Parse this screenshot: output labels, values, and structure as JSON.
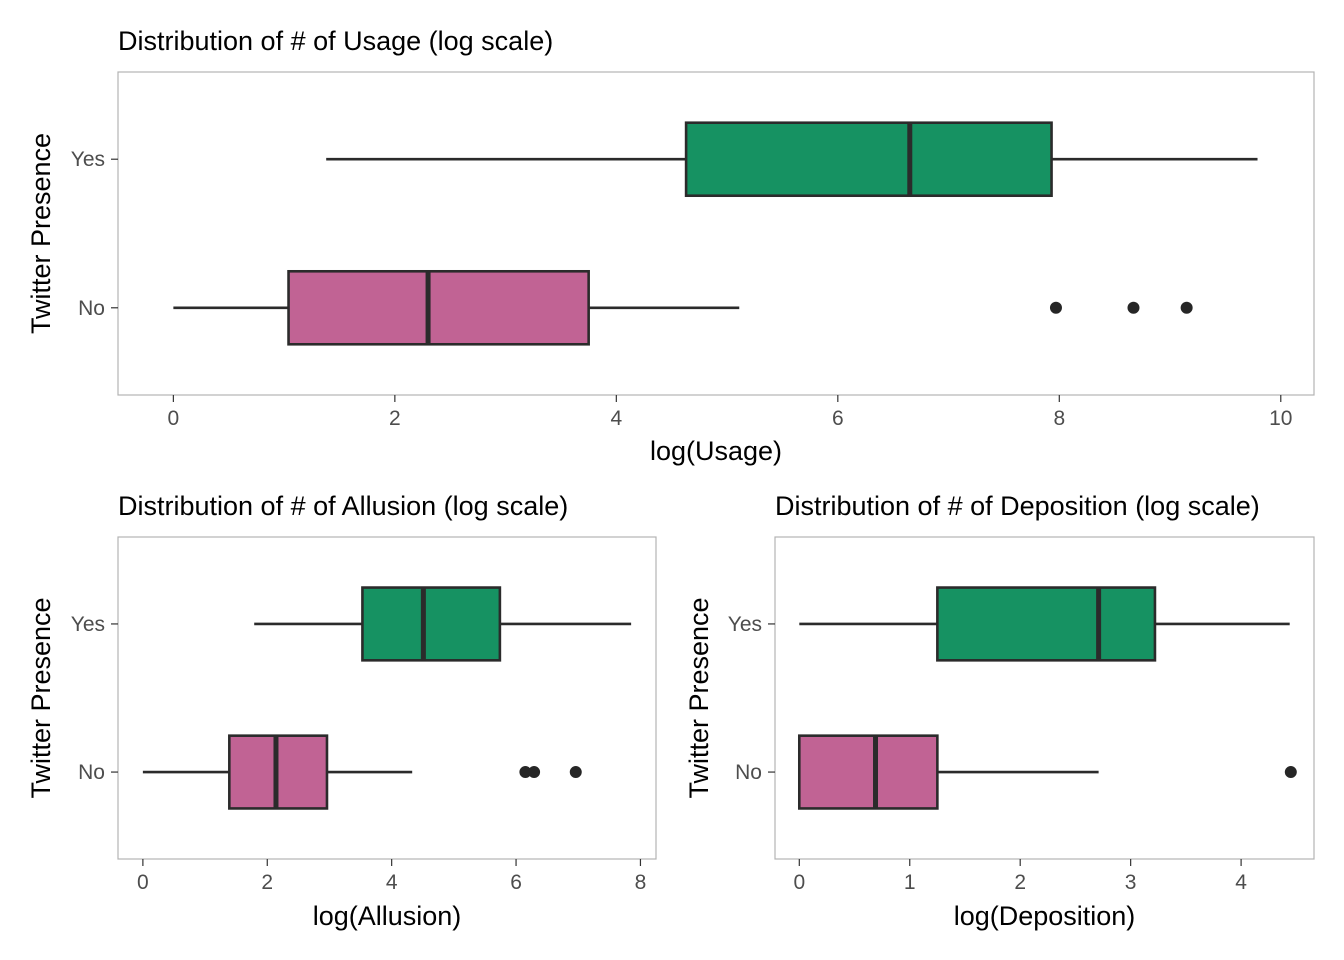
{
  "chart_data": [
    {
      "type": "boxplot",
      "title": "Distribution of # of Usage (log scale)",
      "xlabel": "log(Usage)",
      "ylabel": "Twitter Presence",
      "xlim": [
        -0.5,
        10.3
      ],
      "xticks": [
        0,
        2,
        4,
        6,
        8,
        10
      ],
      "xtick_labels": [
        "0",
        "2",
        "4",
        "6",
        "8",
        "10"
      ],
      "categories": [
        "Yes",
        "No"
      ],
      "series": [
        {
          "name": "Yes",
          "color": "#169262",
          "whisker_low": 1.38,
          "q1": 4.63,
          "median": 6.65,
          "q3": 7.93,
          "whisker_high": 9.79,
          "outliers": []
        },
        {
          "name": "No",
          "color": "#C16394",
          "whisker_low": 0.0,
          "q1": 1.04,
          "median": 2.3,
          "q3": 3.75,
          "whisker_high": 5.11,
          "outliers": [
            7.97,
            8.67,
            9.15
          ]
        }
      ],
      "grid": false,
      "legend": "none"
    },
    {
      "type": "boxplot",
      "title": "Distribution of # of Allusion (log scale)",
      "xlabel": "log(Allusion)",
      "ylabel": "Twitter Presence",
      "xlim": [
        -0.4,
        8.25
      ],
      "xticks": [
        0,
        2,
        4,
        6,
        8
      ],
      "xtick_labels": [
        "0",
        "2",
        "4",
        "6",
        "8"
      ],
      "categories": [
        "Yes",
        "No"
      ],
      "series": [
        {
          "name": "Yes",
          "color": "#169262",
          "whisker_low": 1.79,
          "q1": 3.53,
          "median": 4.51,
          "q3": 5.74,
          "whisker_high": 7.85,
          "outliers": []
        },
        {
          "name": "No",
          "color": "#C16394",
          "whisker_low": 0.0,
          "q1": 1.39,
          "median": 2.14,
          "q3": 2.96,
          "whisker_high": 4.33,
          "outliers": [
            6.15,
            6.29,
            6.96
          ]
        }
      ],
      "grid": false,
      "legend": "none"
    },
    {
      "type": "boxplot",
      "title": "Distribution of # of Deposition (log scale)",
      "xlabel": "log(Deposition)",
      "ylabel": "Twitter Presence",
      "xlim": [
        -0.22,
        4.66
      ],
      "xticks": [
        0,
        1,
        2,
        3,
        4
      ],
      "xtick_labels": [
        "0",
        "1",
        "2",
        "3",
        "4"
      ],
      "categories": [
        "Yes",
        "No"
      ],
      "series": [
        {
          "name": "Yes",
          "color": "#169262",
          "whisker_low": 0.0,
          "q1": 1.25,
          "median": 2.71,
          "q3": 3.22,
          "whisker_high": 4.44,
          "outliers": []
        },
        {
          "name": "No",
          "color": "#C16394",
          "whisker_low": 0.0,
          "q1": 0.0,
          "median": 0.69,
          "q3": 1.25,
          "whisker_high": 2.71,
          "outliers": [
            4.45
          ]
        }
      ],
      "grid": false,
      "legend": "none"
    }
  ]
}
